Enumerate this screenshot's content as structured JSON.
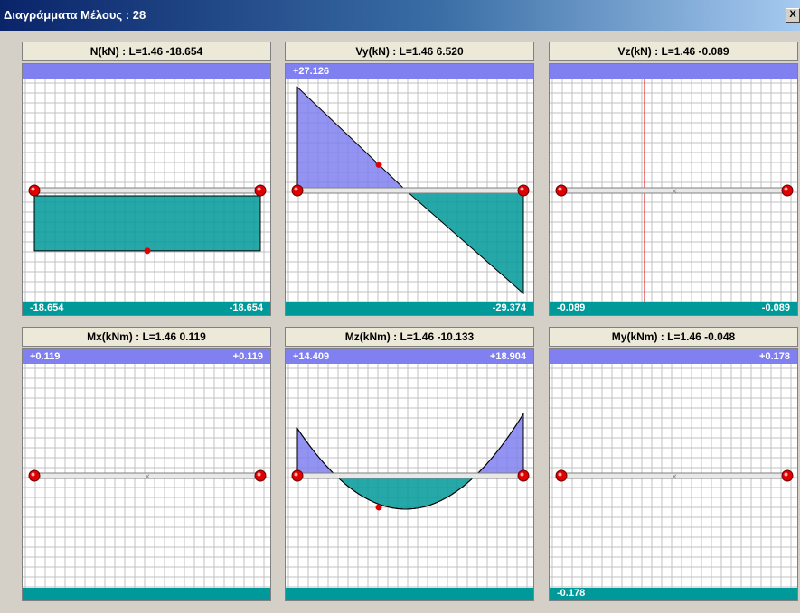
{
  "window": {
    "title": "Διαγράμματα Μέλους : 28",
    "close_label": "X"
  },
  "colors": {
    "positive": "#8080f0",
    "negative": "#009999",
    "grid": "#c0c0c0",
    "member": "#808080",
    "node": "#e00000",
    "zero_line": "#e00000"
  },
  "panels": [
    {
      "id": "n",
      "title": "N(kN) : L=1.46 -18.654",
      "top_left": "",
      "top_right": "",
      "bottom_left": "-18.654",
      "bottom_right": "-18.654",
      "max": 0,
      "min": -18.654,
      "values": [
        -18.654,
        -18.654
      ]
    },
    {
      "id": "vy",
      "title": "Vy(kN) : L=1.46 6.520",
      "top_left": "+27.126",
      "top_right": "",
      "bottom_left": "",
      "bottom_right": "-29.374",
      "max": 27.126,
      "min": -29.374,
      "values": [
        27.126,
        -29.374
      ]
    },
    {
      "id": "vz",
      "title": "Vz(kN) : L=1.46 -0.089",
      "top_left": "",
      "top_right": "",
      "bottom_left": "-0.089",
      "bottom_right": "-0.089",
      "max": 0,
      "min": -0.089,
      "values": [
        -0.089,
        -0.089
      ]
    },
    {
      "id": "mx",
      "title": "Mx(kNm) : L=1.46 0.119",
      "top_left": "+0.119",
      "top_right": "+0.119",
      "bottom_left": "",
      "bottom_right": "",
      "max": 0.119,
      "min": 0,
      "values": [
        0.119,
        0.119
      ]
    },
    {
      "id": "mz",
      "title": "Mz(kNm) : L=1.46 -10.133",
      "top_left": "+14.409",
      "top_right": "+18.904",
      "bottom_left": "",
      "bottom_right": "",
      "max": 18.904,
      "min": -10.133,
      "values": [
        14.409,
        -10.133,
        18.904
      ]
    },
    {
      "id": "my",
      "title": "My(kNm) : L=1.46 -0.048",
      "top_left": "",
      "top_right": "+0.178",
      "bottom_left": "-0.178",
      "bottom_right": "",
      "max": 0.178,
      "min": -0.178,
      "values": [
        0.178,
        -0.178
      ]
    }
  ]
}
